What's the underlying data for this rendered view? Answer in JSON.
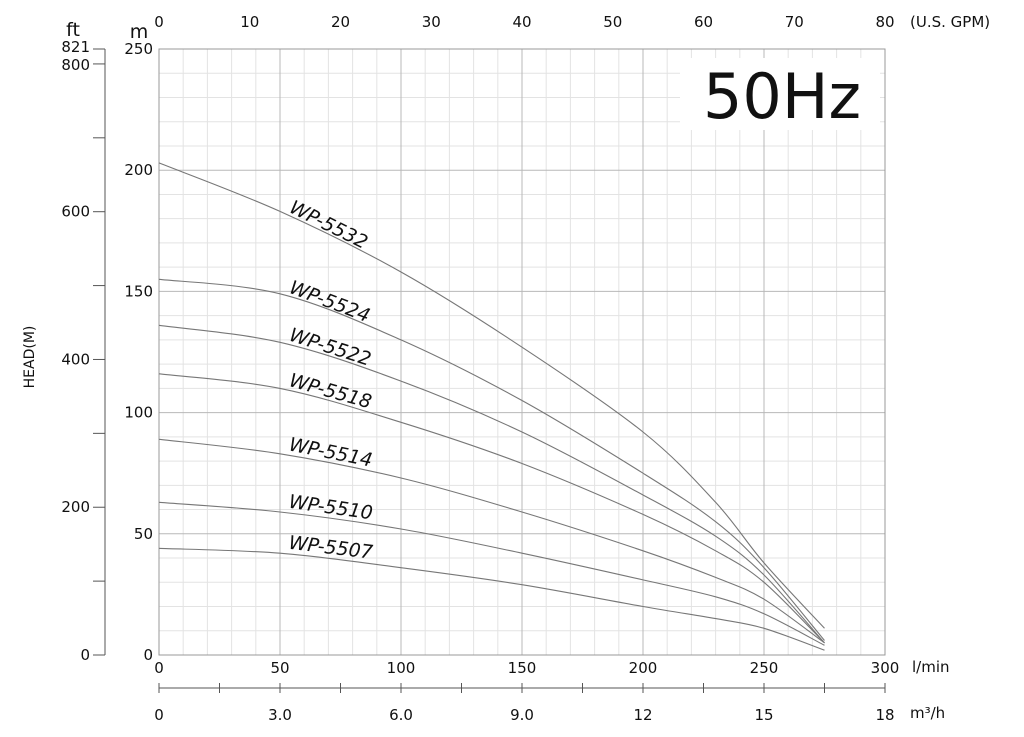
{
  "chart_data": {
    "type": "line",
    "badge": "50Hz",
    "ylabel": "HEAD(M)",
    "units": {
      "ft": "ft",
      "m": "m",
      "gpm": "(U.S. GPM)",
      "lmin": "l/min",
      "m3h": "m³/h"
    },
    "x_lmin": {
      "min": 0,
      "max": 300,
      "ticks": [
        "0",
        "50",
        "100",
        "150",
        "200",
        "250",
        "300"
      ]
    },
    "x_m3h": {
      "ticks": [
        "0",
        "3.0",
        "6.0",
        "9.0",
        "12",
        "15",
        "18"
      ]
    },
    "x_gpm": {
      "ticks": [
        "0",
        "10",
        "20",
        "30",
        "40",
        "50",
        "60",
        "70",
        "80"
      ]
    },
    "y_m": {
      "min": 0,
      "max": 250,
      "ticks": [
        "0",
        "50",
        "100",
        "150",
        "200",
        "250"
      ]
    },
    "y_ft": {
      "ticks": [
        "0",
        "200",
        "400",
        "600",
        "800",
        "821"
      ]
    },
    "grid": true,
    "series": [
      {
        "name": "WP-5532",
        "x": [
          0,
          50,
          100,
          150,
          200,
          230,
          250,
          275
        ],
        "y": [
          203,
          183,
          158,
          127,
          92,
          63,
          38,
          11
        ]
      },
      {
        "name": "WP-5524",
        "x": [
          0,
          50,
          100,
          150,
          200,
          230,
          250,
          275
        ],
        "y": [
          155,
          149,
          130,
          105,
          75,
          55,
          36,
          6
        ]
      },
      {
        "name": "WP-5522",
        "x": [
          0,
          50,
          100,
          150,
          200,
          230,
          250,
          275
        ],
        "y": [
          136,
          129,
          113,
          92,
          66,
          49,
          33,
          5
        ]
      },
      {
        "name": "WP-5518",
        "x": [
          0,
          50,
          100,
          150,
          200,
          230,
          250,
          275
        ],
        "y": [
          116,
          110,
          96,
          79,
          58,
          43,
          30,
          5
        ]
      },
      {
        "name": "WP-5514",
        "x": [
          0,
          50,
          100,
          150,
          200,
          230,
          250,
          275
        ],
        "y": [
          89,
          83,
          73,
          59,
          43,
          32,
          23,
          5
        ]
      },
      {
        "name": "WP-5510",
        "x": [
          0,
          50,
          100,
          150,
          200,
          230,
          250,
          275
        ],
        "y": [
          63,
          59,
          52,
          42,
          31,
          24,
          17,
          4
        ]
      },
      {
        "name": "WP-5507",
        "x": [
          0,
          50,
          100,
          150,
          200,
          230,
          250,
          275
        ],
        "y": [
          44,
          42,
          36,
          29,
          20,
          15,
          11,
          2
        ]
      }
    ]
  }
}
